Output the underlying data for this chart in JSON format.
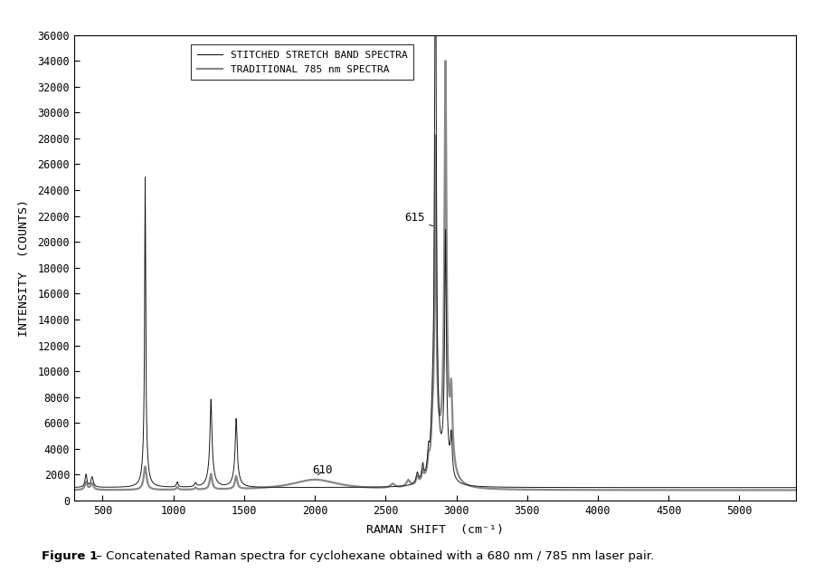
{
  "xlabel": "RAMAN SHIFT  (cm⁻¹)",
  "ylabel": "INTENSITY  (COUNTS)",
  "xlim": [
    300,
    5400
  ],
  "ylim": [
    0,
    36000
  ],
  "yticks": [
    0,
    2000,
    4000,
    6000,
    8000,
    10000,
    12000,
    14000,
    16000,
    18000,
    20000,
    22000,
    24000,
    26000,
    28000,
    30000,
    32000,
    34000,
    36000
  ],
  "xticks": [
    500,
    1000,
    1500,
    2000,
    2500,
    3000,
    3500,
    4000,
    4500,
    5000
  ],
  "legend_labels": [
    "STITCHED STRETCH BAND SPECTRA",
    "TRADITIONAL 785 nm SPECTRA"
  ],
  "line1_color": "#1a1a1a",
  "line2_color": "#888888",
  "caption_bold": "Figure 1",
  "caption_rest": " – Concatenated Raman spectra for cyclohexane obtained with a 680 nm / 785 nm laser pair."
}
